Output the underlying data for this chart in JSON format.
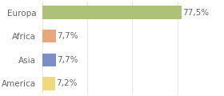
{
  "categories": [
    "America",
    "Asia",
    "Africa",
    "Europa"
  ],
  "values": [
    7.2,
    7.7,
    7.7,
    77.5
  ],
  "labels": [
    "7,2%",
    "7,7%",
    "7,7%",
    "77,5%"
  ],
  "bar_colors": [
    "#efd97a",
    "#7b8ec8",
    "#e8a87c",
    "#adc178"
  ],
  "background_color": "#ffffff",
  "xlim": [
    0,
    100
  ],
  "label_fontsize": 7.5,
  "tick_fontsize": 7.5,
  "bar_height": 0.55,
  "grid_color": "#dddddd",
  "text_color": "#666666"
}
